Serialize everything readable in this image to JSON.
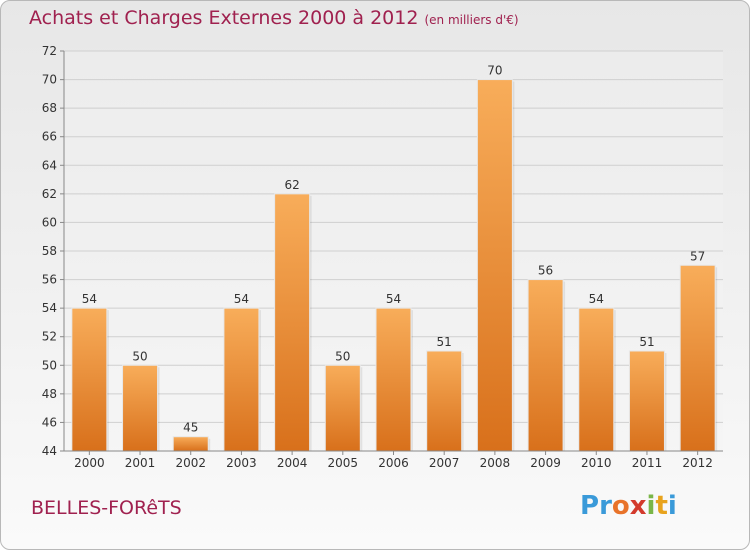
{
  "header": {
    "title": "Achats et Charges Externes 2000 à 2012",
    "subtitle": "(en milliers d'€)"
  },
  "place_label": "BELLES-FORêTS",
  "logo": {
    "letters": [
      "P",
      "r",
      "o",
      "x",
      "i",
      "t",
      "i"
    ],
    "colors": [
      "#3a9ad9",
      "#3a9ad9",
      "#e8732a",
      "#d33a2c",
      "#7ab648",
      "#e8a31d",
      "#3a9ad9"
    ]
  },
  "colors": {
    "bar_light": "#f7aa55",
    "bar_dark": "#d9721c",
    "title": "#a0214f",
    "grid": "#cfcfcf"
  },
  "chart_data": {
    "type": "bar",
    "categories": [
      "2000",
      "2001",
      "2002",
      "2003",
      "2004",
      "2005",
      "2006",
      "2007",
      "2008",
      "2009",
      "2010",
      "2011",
      "2012"
    ],
    "values": [
      54,
      50,
      45,
      54,
      62,
      50,
      54,
      51,
      70,
      56,
      54,
      51,
      57
    ],
    "ylim": [
      44,
      72
    ],
    "yticks": [
      44,
      46,
      48,
      50,
      52,
      54,
      56,
      58,
      60,
      62,
      64,
      66,
      68,
      70,
      72
    ],
    "grid": true,
    "data_labels": true
  }
}
